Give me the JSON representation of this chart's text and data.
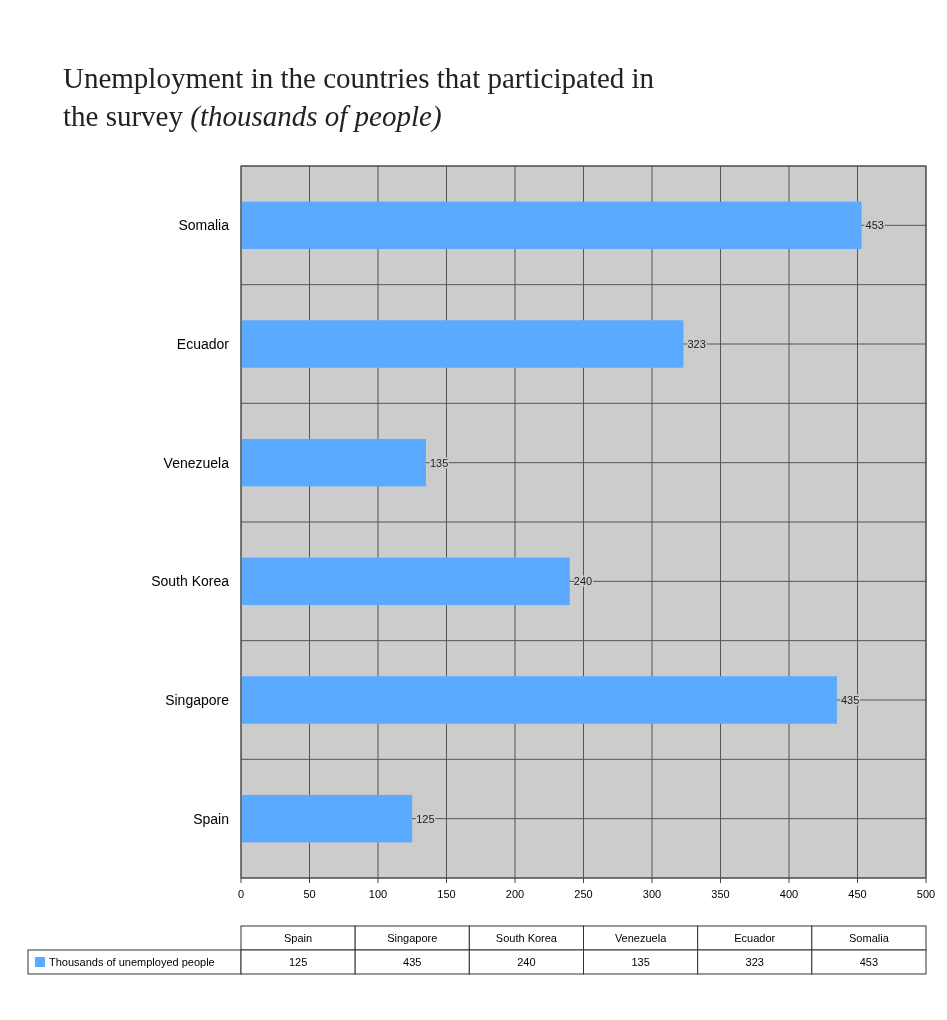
{
  "chart_data": [
    {
      "type": "bar",
      "orientation": "horizontal",
      "title": "Unemployment in the countries that participated in the survey (thousands of people)",
      "categories": [
        "Somalia",
        "Ecuador",
        "Venezuela",
        "South Korea",
        "Singapore",
        "Spain"
      ],
      "series": [
        {
          "name": "Thousands of unemployed people",
          "color": "#5aabff",
          "values": [
            453,
            323,
            135,
            240,
            435,
            125
          ]
        }
      ],
      "xlim": [
        0,
        500
      ],
      "xticks": [
        0,
        50,
        100,
        150,
        200,
        250,
        300,
        350,
        400,
        450,
        500
      ],
      "grid": true,
      "data_labels": true,
      "legend": "bottom left"
    },
    {
      "type": "other",
      "categories": [
        "Spain",
        "Singapore",
        "South Korea",
        "Venezuela",
        "Ecuador",
        "Somalia"
      ],
      "values": [
        125,
        435,
        240,
        135,
        323,
        453
      ],
      "data_labels": true
    }
  ]
}
